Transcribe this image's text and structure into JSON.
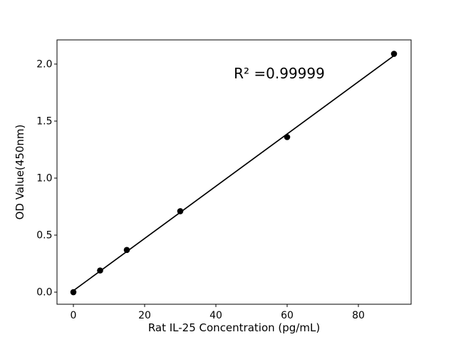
{
  "figure": {
    "background": "#ffffff"
  },
  "chart_data": {
    "type": "scatter",
    "title": "",
    "xlabel": "Rat IL-25 Concentration (pg/mL)",
    "ylabel": "OD Value(450nm)",
    "x": [
      0,
      7.5,
      15,
      30,
      60,
      90
    ],
    "y": [
      0.0,
      0.19,
      0.37,
      0.71,
      1.36,
      2.09
    ],
    "fit_line": {
      "slope": 0.0229,
      "intercept": 0.013,
      "x_start": 0,
      "x_end": 90
    },
    "annotation": {
      "text": "R² =0.99999"
    },
    "axes": {
      "xlim": [
        -4.6,
        94.8
      ],
      "ylim": [
        -0.106,
        2.212
      ],
      "xticks": [
        0,
        20,
        40,
        60,
        80
      ],
      "xtick_labels": [
        "0",
        "20",
        "40",
        "60",
        "80"
      ],
      "yticks": [
        0.0,
        0.5,
        1.0,
        1.5,
        2.0
      ],
      "ytick_labels": [
        "0.0",
        "0.5",
        "1.0",
        "1.5",
        "2.0"
      ],
      "grid": false,
      "legend": "none"
    },
    "colors": {
      "marker": "#000000",
      "line": "#000000",
      "axis": "#000000",
      "text": "#000000",
      "background": "#ffffff"
    }
  }
}
